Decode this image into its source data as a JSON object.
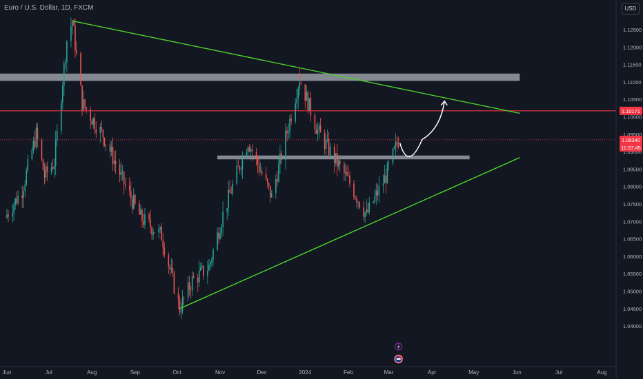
{
  "header": {
    "symbol_title": "Euro / U.S. Dollar, 1D, FXCM",
    "currency_button": "USD"
  },
  "colors": {
    "background": "#131722",
    "up": "#26a69a",
    "down": "#ef5350",
    "trendline": "#4cd32a",
    "level_line": "#f23645",
    "zone": "#b2b5be"
  },
  "chart_data": {
    "type": "candlestick",
    "title": "Euro / U.S. Dollar, 1D, FXCM",
    "y_ticks": [
      "1.12500",
      "1.12000",
      "1.11500",
      "1.11000",
      "1.10500",
      "1.10000",
      "1.09500",
      "1.09000",
      "1.08500",
      "1.08000",
      "1.07500",
      "1.07000",
      "1.06500",
      "1.06000",
      "1.05500",
      "1.05000",
      "1.04500",
      "1.04000"
    ],
    "ylim": [
      1.0395,
      1.1295
    ],
    "x_ticks": [
      "Jun",
      "Jul",
      "Aug",
      "Sep",
      "Oct",
      "Nov",
      "Dec",
      "2024",
      "Feb",
      "Mar",
      "Apr",
      "May",
      "Jun",
      "Jul",
      "Aug"
    ],
    "price_labels": {
      "resistance": "1.10171",
      "current_price": "1.09340",
      "countdown": "11:57:45"
    },
    "key_prices": {
      "jul_high": 1.1275,
      "oct_low": 1.045,
      "dec_high": 1.114,
      "feb_low": 1.0698,
      "last_close": 1.0934,
      "resistance_line": 1.10171
    },
    "trendlines": [
      {
        "name": "descending resistance",
        "from": [
          "2023-07-18",
          1.1275
        ],
        "to": [
          "2024-06-03",
          1.101
        ]
      },
      {
        "name": "ascending support",
        "from": [
          "2023-10-03",
          1.045
        ],
        "to": [
          "2024-06-03",
          1.0883
        ]
      }
    ],
    "zones": [
      {
        "name": "upper supply zone",
        "from": "2023-05-22",
        "to": "2024-06-03",
        "price_low": 1.1103,
        "price_high": 1.1124
      },
      {
        "name": "demand zone",
        "from": "2023-10-30",
        "to": "2024-04-28",
        "price_low": 1.0878,
        "price_high": 1.0889
      }
    ],
    "projection": {
      "points": [
        [
          "2024-03-09",
          1.0925
        ],
        [
          "2024-03-25",
          1.0935
        ],
        [
          "2024-04-10",
          1.1045
        ]
      ]
    },
    "event_icons": [
      "lightning-icon",
      "eu-us-flags-icon"
    ],
    "grid": false
  }
}
